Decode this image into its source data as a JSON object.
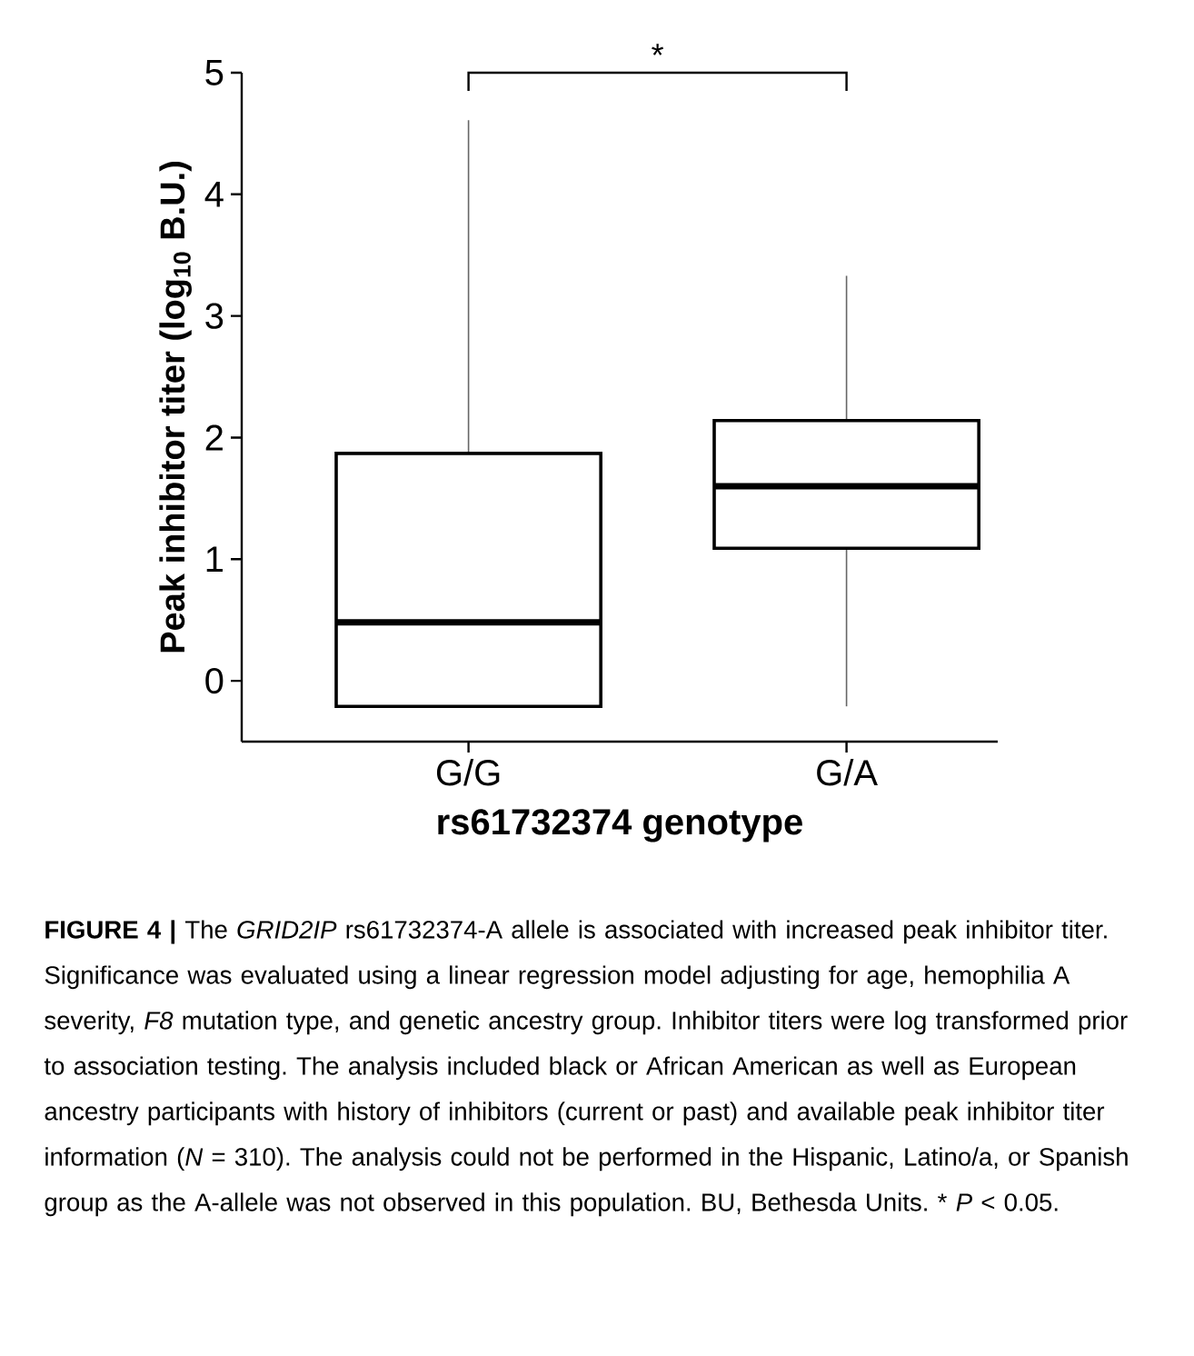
{
  "chart_data": {
    "type": "box",
    "categories": [
      "G/G",
      "G/A"
    ],
    "xlabel": "rs61732374 genotype",
    "ylabel": "Peak inhibitor titer (log$_{10}$ B.U.)",
    "ylim": [
      -0.5,
      5
    ],
    "yticks": [
      0,
      1,
      2,
      3,
      4,
      5
    ],
    "boxes": [
      {
        "low": -0.21,
        "q1": -0.21,
        "median": 0.48,
        "q3": 1.87,
        "high": 4.61
      },
      {
        "low": -0.21,
        "q1": 1.09,
        "median": 1.6,
        "q3": 2.14,
        "high": 3.33
      }
    ],
    "annotations": [
      "*",
      "**FIGURE 4 |** The *GRID2IP* rs61732374-A allele is associated with increased peak inhibitor titer. Significance was evaluated using a linear regression model adjusting for age, hemophilia A severity, *F8* mutation type, and genetic ancestry group. Inhibitor titers were log transformed prior to association testing. The analysis included black or African American as well as European ancestry participants with history of inhibitors (current or past) and available peak inhibitor titer information (*N* = 310). The analysis could not be performed in the Hispanic, Latino/a, or Spanish group as the A-allele was not observed in this population. BU, Bethesda Units. * *P* < 0.05."
    ]
  }
}
